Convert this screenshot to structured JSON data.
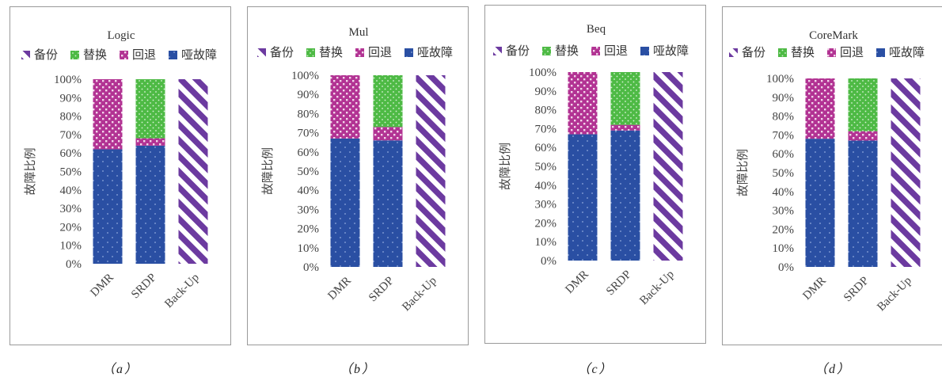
{
  "legend_series_order": [
    "备份",
    "替换",
    "回退",
    "哑故障"
  ],
  "series_colors": {
    "哑故障": "#2a4fa3",
    "回退": "#b23393",
    "替换": "#4eba45",
    "备份": "#6c3aa0"
  },
  "chart_data": [
    {
      "type": "bar",
      "stacked": true,
      "title": "Logic",
      "ylabel": "故障比例",
      "categories": [
        "DMR",
        "SRDP",
        "Back-Up"
      ],
      "yticks": [
        "0%",
        "10%",
        "20%",
        "30%",
        "40%",
        "50%",
        "60%",
        "70%",
        "80%",
        "90%",
        "100%"
      ],
      "ylim": [
        0,
        100
      ],
      "series": [
        {
          "name": "哑故障",
          "values": [
            62,
            64,
            0
          ]
        },
        {
          "name": "回退",
          "values": [
            38,
            4,
            0
          ]
        },
        {
          "name": "替换",
          "values": [
            0,
            32,
            0
          ]
        },
        {
          "name": "备份",
          "values": [
            0,
            0,
            100
          ]
        }
      ],
      "caption": "（a）"
    },
    {
      "type": "bar",
      "stacked": true,
      "title": "Mul",
      "ylabel": "故障比例",
      "categories": [
        "DMR",
        "SRDP",
        "Back-Up"
      ],
      "yticks": [
        "0%",
        "10%",
        "20%",
        "30%",
        "40%",
        "50%",
        "60%",
        "70%",
        "80%",
        "90%",
        "100%"
      ],
      "ylim": [
        0,
        100
      ],
      "series": [
        {
          "name": "哑故障",
          "values": [
            67,
            66,
            0
          ]
        },
        {
          "name": "回退",
          "values": [
            33,
            7,
            0
          ]
        },
        {
          "name": "替换",
          "values": [
            0,
            27,
            0
          ]
        },
        {
          "name": "备份",
          "values": [
            0,
            0,
            100
          ]
        }
      ],
      "caption": "（b）"
    },
    {
      "type": "bar",
      "stacked": true,
      "title": "Beq",
      "ylabel": "故障比例",
      "categories": [
        "DMR",
        "SRDP",
        "Back-Up"
      ],
      "yticks": [
        "0%",
        "10%",
        "20%",
        "30%",
        "40%",
        "50%",
        "60%",
        "70%",
        "80%",
        "90%",
        "100%"
      ],
      "ylim": [
        0,
        100
      ],
      "series": [
        {
          "name": "哑故障",
          "values": [
            67,
            69,
            0
          ]
        },
        {
          "name": "回退",
          "values": [
            33,
            3,
            0
          ]
        },
        {
          "name": "替换",
          "values": [
            0,
            28,
            0
          ]
        },
        {
          "name": "备份",
          "values": [
            0,
            0,
            100
          ]
        }
      ],
      "caption": "（c）"
    },
    {
      "type": "bar",
      "stacked": true,
      "title": "CoreMark",
      "ylabel": "故障比例",
      "categories": [
        "DMR",
        "SRDP",
        "Back-Up"
      ],
      "yticks": [
        "0%",
        "10%",
        "20%",
        "30%",
        "40%",
        "50%",
        "60%",
        "70%",
        "80%",
        "90%",
        "100%"
      ],
      "ylim": [
        0,
        100
      ],
      "series": [
        {
          "name": "哑故障",
          "values": [
            68,
            67,
            0
          ]
        },
        {
          "name": "回退",
          "values": [
            32,
            5,
            0
          ]
        },
        {
          "name": "替换",
          "values": [
            0,
            28,
            0
          ]
        },
        {
          "name": "备份",
          "values": [
            0,
            0,
            100
          ]
        }
      ],
      "caption": "（d）"
    }
  ]
}
